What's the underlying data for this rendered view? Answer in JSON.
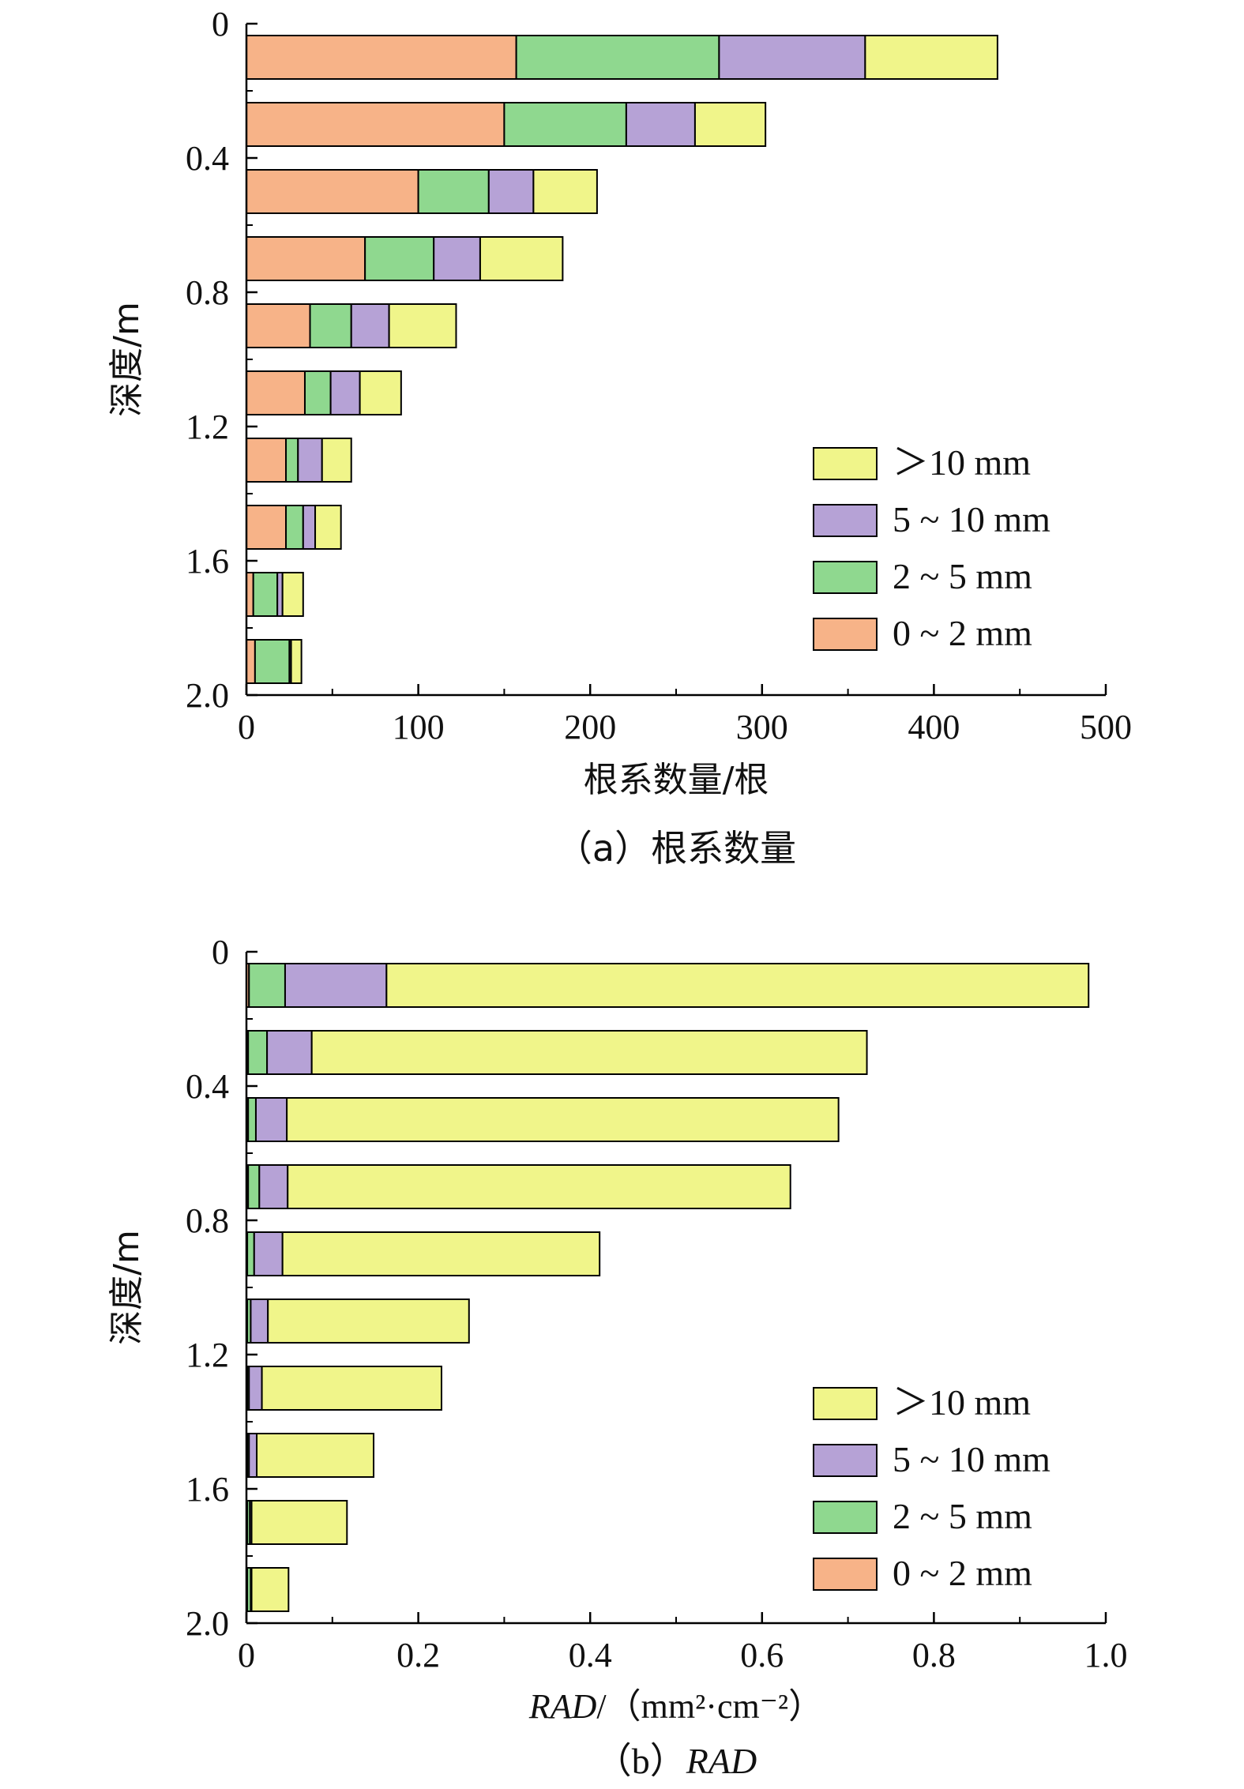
{
  "colors": {
    "0_2": "#f7b388",
    "2_5": "#8fd88f",
    "5_10": "#b6a2d6",
    "gt10": "#f0f58a"
  },
  "legend": [
    {
      "key": "gt10",
      "label": "＞10 mm"
    },
    {
      "key": "5_10",
      "label": "5 ~ 10 mm"
    },
    {
      "key": "2_5",
      "label": "2 ~ 5 mm"
    },
    {
      "key": "0_2",
      "label": "0 ~ 2 mm"
    }
  ],
  "chart_data": [
    {
      "type": "bar",
      "orientation": "horizontal",
      "stacked": true,
      "caption": "（a）根系数量",
      "xlabel": "根系数量/根",
      "ylabel": "深度/m",
      "xlim": [
        0,
        500
      ],
      "xticks": [
        "0",
        "100",
        "200",
        "300",
        "400",
        "500"
      ],
      "ylim": [
        0,
        2.0
      ],
      "yticks": [
        "0",
        "0.4",
        "0.8",
        "1.2",
        "1.6",
        "2.0"
      ],
      "depth_bins": [
        0.1,
        0.3,
        0.5,
        0.7,
        0.9,
        1.1,
        1.3,
        1.5,
        1.7,
        1.9
      ],
      "series": [
        {
          "key": "0_2",
          "name": "0 ~ 2 mm",
          "values": [
            157,
            150,
            100,
            69,
            37,
            34,
            23,
            23,
            4,
            5
          ]
        },
        {
          "key": "2_5",
          "name": "2 ~ 5 mm",
          "values": [
            118,
            71,
            41,
            40,
            24,
            15,
            7,
            10,
            14,
            20
          ]
        },
        {
          "key": "5_10",
          "name": "5 ~ 10 mm",
          "values": [
            85,
            40,
            26,
            27,
            22,
            17,
            14,
            7,
            3,
            1
          ]
        },
        {
          "key": "gt10",
          "name": "＞10 mm",
          "values": [
            77,
            41,
            37,
            48,
            39,
            24,
            17,
            15,
            12,
            6
          ]
        }
      ]
    },
    {
      "type": "bar",
      "orientation": "horizontal",
      "stacked": true,
      "caption_prefix": "（b）",
      "caption_italic": "RAD",
      "xlabel_italic": "RAD",
      "xlabel_rest": "/（mm²·cm⁻²）",
      "ylabel": "深度/m",
      "xlim": [
        0,
        1.0
      ],
      "xticks": [
        "0",
        "0.2",
        "0.4",
        "0.6",
        "0.8",
        "1.0"
      ],
      "ylim": [
        0,
        2.0
      ],
      "yticks": [
        "0",
        "0.4",
        "0.8",
        "1.2",
        "1.6",
        "2.0"
      ],
      "depth_bins": [
        0.1,
        0.3,
        0.5,
        0.7,
        0.9,
        1.1,
        1.3,
        1.5,
        1.7,
        1.9
      ],
      "series": [
        {
          "key": "0_2",
          "name": "0 ~ 2 mm",
          "values": [
            0.003,
            0.002,
            0.002,
            0.002,
            0.001,
            0.001,
            0.001,
            0.001,
            0.001,
            0.001
          ]
        },
        {
          "key": "2_5",
          "name": "2 ~ 5 mm",
          "values": [
            0.042,
            0.022,
            0.009,
            0.013,
            0.008,
            0.004,
            0.002,
            0.002,
            0.003,
            0.004
          ]
        },
        {
          "key": "5_10",
          "name": "5 ~ 10 mm",
          "values": [
            0.118,
            0.052,
            0.036,
            0.033,
            0.033,
            0.02,
            0.015,
            0.009,
            0.002,
            0.001
          ]
        },
        {
          "key": "gt10",
          "name": "＞10 mm",
          "values": [
            0.817,
            0.646,
            0.642,
            0.585,
            0.369,
            0.234,
            0.209,
            0.136,
            0.111,
            0.043
          ]
        }
      ]
    }
  ]
}
